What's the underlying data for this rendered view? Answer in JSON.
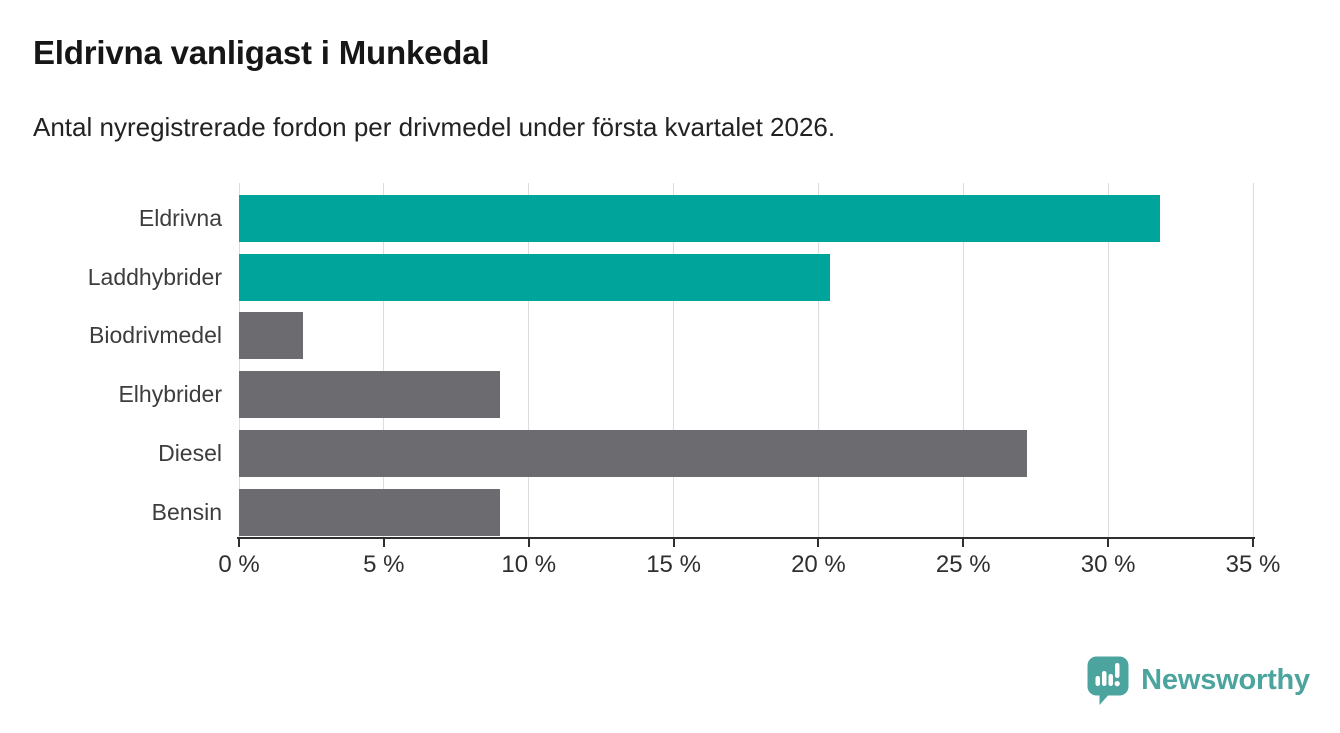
{
  "header": {
    "title": "Eldrivna vanligast i Munkedal",
    "subtitle": "Antal nyregistrerade fordon per drivmedel under första kvartalet 2026."
  },
  "chart_data": {
    "type": "bar",
    "orientation": "horizontal",
    "title": "Eldrivna vanligast i Munkedal",
    "subtitle": "Antal nyregistrerade fordon per drivmedel under första kvartalet 2026.",
    "categories": [
      "Eldrivna",
      "Laddhybrider",
      "Biodrivmedel",
      "Elhybrider",
      "Diesel",
      "Bensin"
    ],
    "values": [
      31.8,
      20.4,
      2.2,
      9.0,
      27.2,
      9.0
    ],
    "unit": "%",
    "xlim": [
      0,
      35
    ],
    "xticks": [
      0,
      5,
      10,
      15,
      20,
      25,
      30,
      35
    ],
    "xtick_labels": [
      "0 %",
      "5 %",
      "10 %",
      "15 %",
      "20 %",
      "25 %",
      "30 %",
      "35 %"
    ],
    "grid": true,
    "legend": "none",
    "bar_colors": [
      "#00a49a",
      "#00a49a",
      "#6b6b70",
      "#6b6b70",
      "#6b6b70",
      "#6b6b70"
    ],
    "accent_color": "#00a49a",
    "neutral_color": "#6b6b70",
    "grid_color": "#dcdcdc",
    "axis_color": "#2f2f2f",
    "label_color": "#3d3d3d"
  },
  "footer": {
    "brand": "Newsworthy",
    "brand_color": "#4ba49d",
    "logo_icon": "bar-chart-speech-bubble"
  }
}
